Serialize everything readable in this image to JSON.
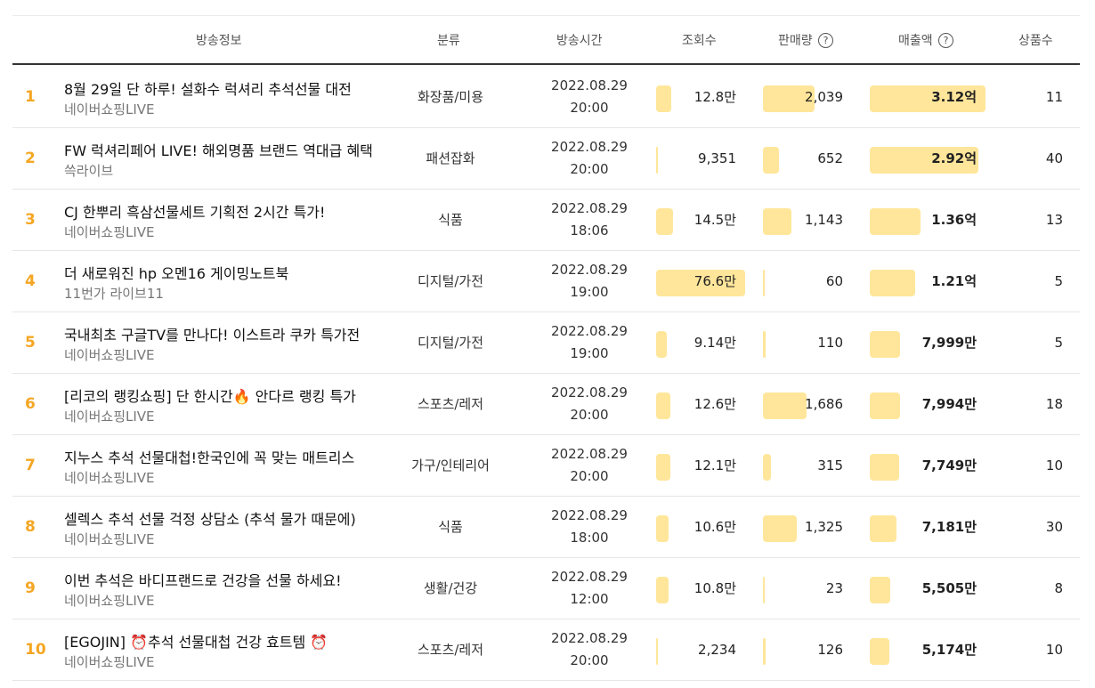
{
  "header": {
    "broadcast_info": "방송정보",
    "category": "분류",
    "broadcast_time": "방송시간",
    "views": "조회수",
    "sales_volume": "판매량",
    "revenue": "매출액",
    "product_count": "상품수",
    "help_icon": "?"
  },
  "rows": [
    {
      "rank": "1",
      "title": "8월 29일 단 하루! 설화수 럭셔리 추석선물 대전",
      "channel": "네이버쇼핑LIVE",
      "category": "화장품/미용",
      "date": "2022.08.29",
      "time": "20:00",
      "views": "12.8만",
      "sales": "2,039",
      "revenue": "3.12억",
      "products": "11",
      "views_ratio": 0.17,
      "sales_ratio": 0.54,
      "revenue_ratio": 1.0
    },
    {
      "rank": "2",
      "title": "FW 럭셔리페어 LIVE! 해외명품 브랜드 역대급 혜택",
      "channel": "쓱라이브",
      "category": "패션잡화",
      "date": "2022.08.29",
      "time": "20:00",
      "views": "9,351",
      "sales": "652",
      "revenue": "2.92억",
      "products": "40",
      "views_ratio": 0.01,
      "sales_ratio": 0.17,
      "revenue_ratio": 0.94
    },
    {
      "rank": "3",
      "title": "CJ 한뿌리 흑삼선물세트 기획전 2시간 특가!",
      "channel": "네이버쇼핑LIVE",
      "category": "식품",
      "date": "2022.08.29",
      "time": "18:06",
      "views": "14.5만",
      "sales": "1,143",
      "revenue": "1.36억",
      "products": "13",
      "views_ratio": 0.19,
      "sales_ratio": 0.3,
      "revenue_ratio": 0.44
    },
    {
      "rank": "4",
      "title": "더 새로워진 hp 오멘16 게이밍노트북",
      "channel": "11번가 라이브11",
      "category": "디지털/가전",
      "date": "2022.08.29",
      "time": "19:00",
      "views": "76.6만",
      "sales": "60",
      "revenue": "1.21억",
      "products": "5",
      "views_ratio": 1.0,
      "sales_ratio": 0.02,
      "revenue_ratio": 0.39
    },
    {
      "rank": "5",
      "title": "국내최초 구글TV를 만나다! 이스트라 쿠카 특가전",
      "channel": "네이버쇼핑LIVE",
      "category": "디지털/가전",
      "date": "2022.08.29",
      "time": "19:00",
      "views": "9.14만",
      "sales": "110",
      "revenue": "7,999만",
      "products": "5",
      "views_ratio": 0.12,
      "sales_ratio": 0.03,
      "revenue_ratio": 0.26
    },
    {
      "rank": "6",
      "title": "[리코의 랭킹쇼핑] 단 한시간🔥 안다르 랭킹 특가",
      "channel": "네이버쇼핑LIVE",
      "category": "스포츠/레저",
      "date": "2022.08.29",
      "time": "20:00",
      "views": "12.6만",
      "sales": "1,686",
      "revenue": "7,994만",
      "products": "18",
      "views_ratio": 0.16,
      "sales_ratio": 0.45,
      "revenue_ratio": 0.26
    },
    {
      "rank": "7",
      "title": "지누스 추석 선물대첩!한국인에 꼭 맞는 매트리스",
      "channel": "네이버쇼핑LIVE",
      "category": "가구/인테리어",
      "date": "2022.08.29",
      "time": "20:00",
      "views": "12.1만",
      "sales": "315",
      "revenue": "7,749만",
      "products": "10",
      "views_ratio": 0.16,
      "sales_ratio": 0.08,
      "revenue_ratio": 0.25
    },
    {
      "rank": "8",
      "title": "셀렉스 추석 선물 걱정 상담소 (추석 물가 때문에)",
      "channel": "네이버쇼핑LIVE",
      "category": "식품",
      "date": "2022.08.29",
      "time": "18:00",
      "views": "10.6만",
      "sales": "1,325",
      "revenue": "7,181만",
      "products": "30",
      "views_ratio": 0.14,
      "sales_ratio": 0.35,
      "revenue_ratio": 0.23
    },
    {
      "rank": "9",
      "title": "이번 추석은 바디프랜드로 건강을 선물 하세요!",
      "channel": "네이버쇼핑LIVE",
      "category": "생활/건강",
      "date": "2022.08.29",
      "time": "12:00",
      "views": "10.8만",
      "sales": "23",
      "revenue": "5,505만",
      "products": "8",
      "views_ratio": 0.14,
      "sales_ratio": 0.01,
      "revenue_ratio": 0.18
    },
    {
      "rank": "10",
      "title": "[EGOJIN] ⏰추석 선물대첩 건강 효트템 ⏰",
      "channel": "네이버쇼핑LIVE",
      "category": "스포츠/레저",
      "date": "2022.08.29",
      "time": "20:00",
      "views": "2,234",
      "sales": "126",
      "revenue": "5,174만",
      "products": "10",
      "views_ratio": 0.01,
      "sales_ratio": 0.03,
      "revenue_ratio": 0.17
    }
  ]
}
